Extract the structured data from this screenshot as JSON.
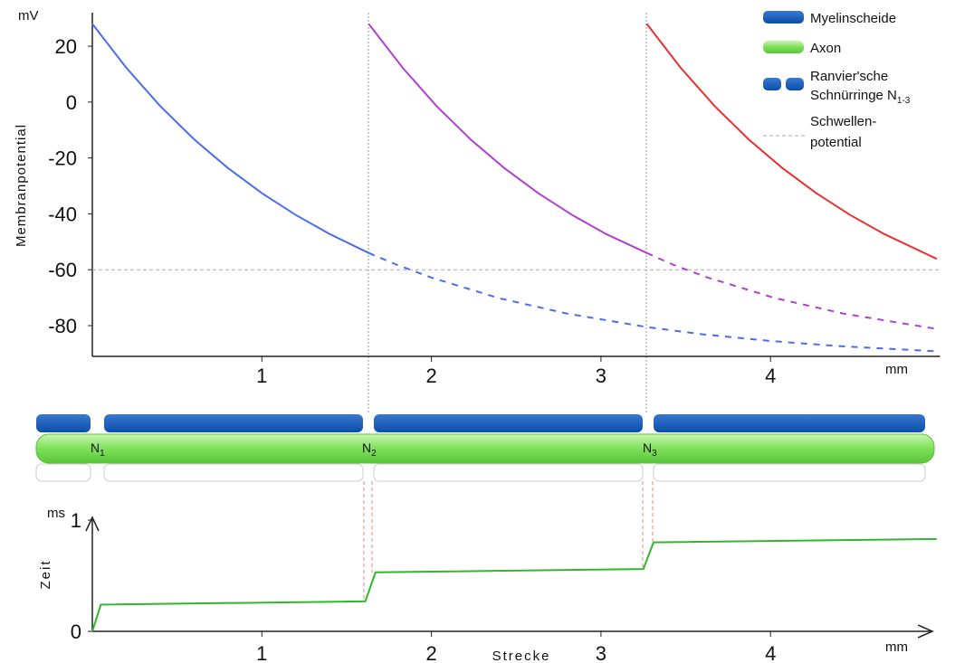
{
  "chart_data": [
    {
      "type": "line",
      "y_unit": "mV",
      "y_label": "Membranpotential",
      "x_unit": "mm",
      "xlim": [
        0,
        5
      ],
      "ylim": [
        -91,
        32
      ],
      "xticks": [
        1,
        2,
        3,
        4
      ],
      "yticks": [
        20,
        0,
        -20,
        -40,
        -60,
        -80
      ],
      "threshold": -60,
      "series": [
        {
          "color": "#4a6cf0",
          "dashed": false,
          "x": [
            0,
            0.2,
            0.4,
            0.6,
            0.8,
            1.0,
            1.2,
            1.4,
            1.63
          ],
          "values": [
            28,
            12.3,
            -1.4,
            -13.3,
            -23.6,
            -32.6,
            -40.4,
            -47.2,
            -54
          ]
        },
        {
          "color": "#4a6cf0",
          "dashed": true,
          "x": [
            1.63,
            1.8,
            2.0,
            2.4,
            2.8,
            3.27,
            3.6,
            4.0,
            4.4,
            4.98
          ],
          "values": [
            -54,
            -58.3,
            -62.8,
            -70.2,
            -75.7,
            -80.5,
            -83.1,
            -85.5,
            -87.3,
            -89.2
          ]
        },
        {
          "color": "#b040d0",
          "dashed": false,
          "x": [
            1.63,
            1.83,
            2.03,
            2.23,
            2.43,
            2.63,
            2.83,
            3.03,
            3.27
          ],
          "values": [
            28,
            12.3,
            -1.4,
            -13.3,
            -23.6,
            -32.6,
            -40.4,
            -47.2,
            -54
          ]
        },
        {
          "color": "#b040d0",
          "dashed": true,
          "x": [
            3.27,
            3.43,
            3.63,
            4.03,
            4.43,
            4.98
          ],
          "values": [
            -54,
            -58.3,
            -62.8,
            -70.2,
            -75.7,
            -81.2
          ]
        },
        {
          "color": "#e83030",
          "dashed": false,
          "x": [
            3.27,
            3.47,
            3.67,
            3.87,
            4.07,
            4.27,
            4.47,
            4.67,
            4.98
          ],
          "values": [
            28,
            12.3,
            -1.4,
            -13.3,
            -23.6,
            -32.6,
            -40.4,
            -47.2,
            -56.1
          ]
        }
      ]
    },
    {
      "type": "line",
      "y_unit": "ms",
      "y_label": "Zeit",
      "x_label": "Strecke",
      "x_unit": "mm",
      "xlim": [
        0,
        5
      ],
      "ylim": [
        0,
        1
      ],
      "xticks": [
        1,
        2,
        3,
        4
      ],
      "yticks": [
        0,
        1
      ],
      "series": [
        {
          "color": "#2db82d",
          "dashed": false,
          "x": [
            0,
            0.05,
            1.61,
            1.67,
            3.25,
            3.31,
            4.98
          ],
          "values": [
            0,
            0.24,
            0.27,
            0.53,
            0.56,
            0.8,
            0.83
          ]
        }
      ]
    }
  ],
  "legend": [
    {
      "lines": [
        "Myelinscheide"
      ]
    },
    {
      "lines": [
        "Axon"
      ]
    },
    {
      "lines": [
        "Ranvier'sche",
        "Schnürringe N"
      ],
      "sub": "1-3"
    },
    {
      "lines": [
        "Schwellen-",
        "potential"
      ]
    }
  ],
  "nodes": [
    {
      "label": "N",
      "sub": "1"
    },
    {
      "label": "N",
      "sub": "2"
    },
    {
      "label": "N",
      "sub": "3"
    }
  ]
}
